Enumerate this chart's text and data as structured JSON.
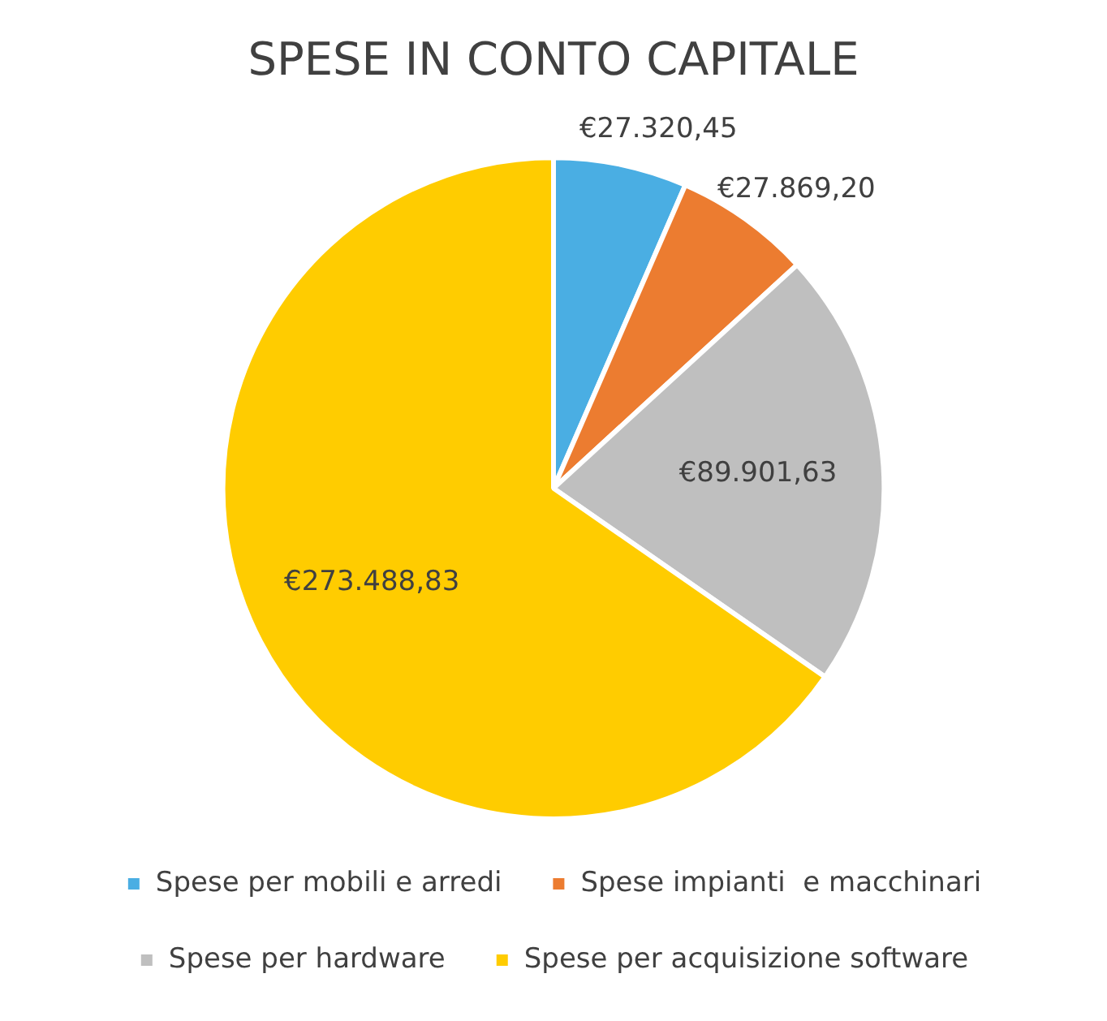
{
  "chart_data": {
    "type": "pie",
    "title": "SPESE IN CONTO CAPITALE",
    "categories": [
      "Spese per mobili e arredi",
      "Spese impianti  e macchinari",
      "Spese per hardware",
      "Spese per acquisizione software"
    ],
    "values": [
      27320.45,
      27869.2,
      89901.63,
      273488.83
    ],
    "colors": [
      "#4aaee3",
      "#ec7c30",
      "#bfbfbf",
      "#ffcc00"
    ],
    "value_labels": [
      "€27.320,45",
      "€27.869,20",
      "€89.901,63",
      "€273.488,83"
    ],
    "legend": "bottom"
  }
}
